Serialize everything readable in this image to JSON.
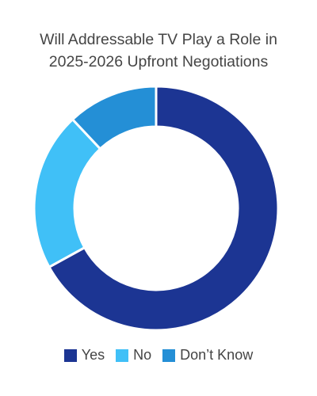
{
  "chart_data": {
    "type": "pie",
    "title_lines": [
      "Will Addressable TV Play a Role in",
      "2025-2026 Upfront Negotiations"
    ],
    "donut": true,
    "categories": [
      "Yes",
      "No",
      "Don’t Know"
    ],
    "values": [
      67,
      21,
      12
    ],
    "colors": [
      "#1c3593",
      "#40c0f7",
      "#248fd6"
    ],
    "legend_position": "bottom"
  }
}
